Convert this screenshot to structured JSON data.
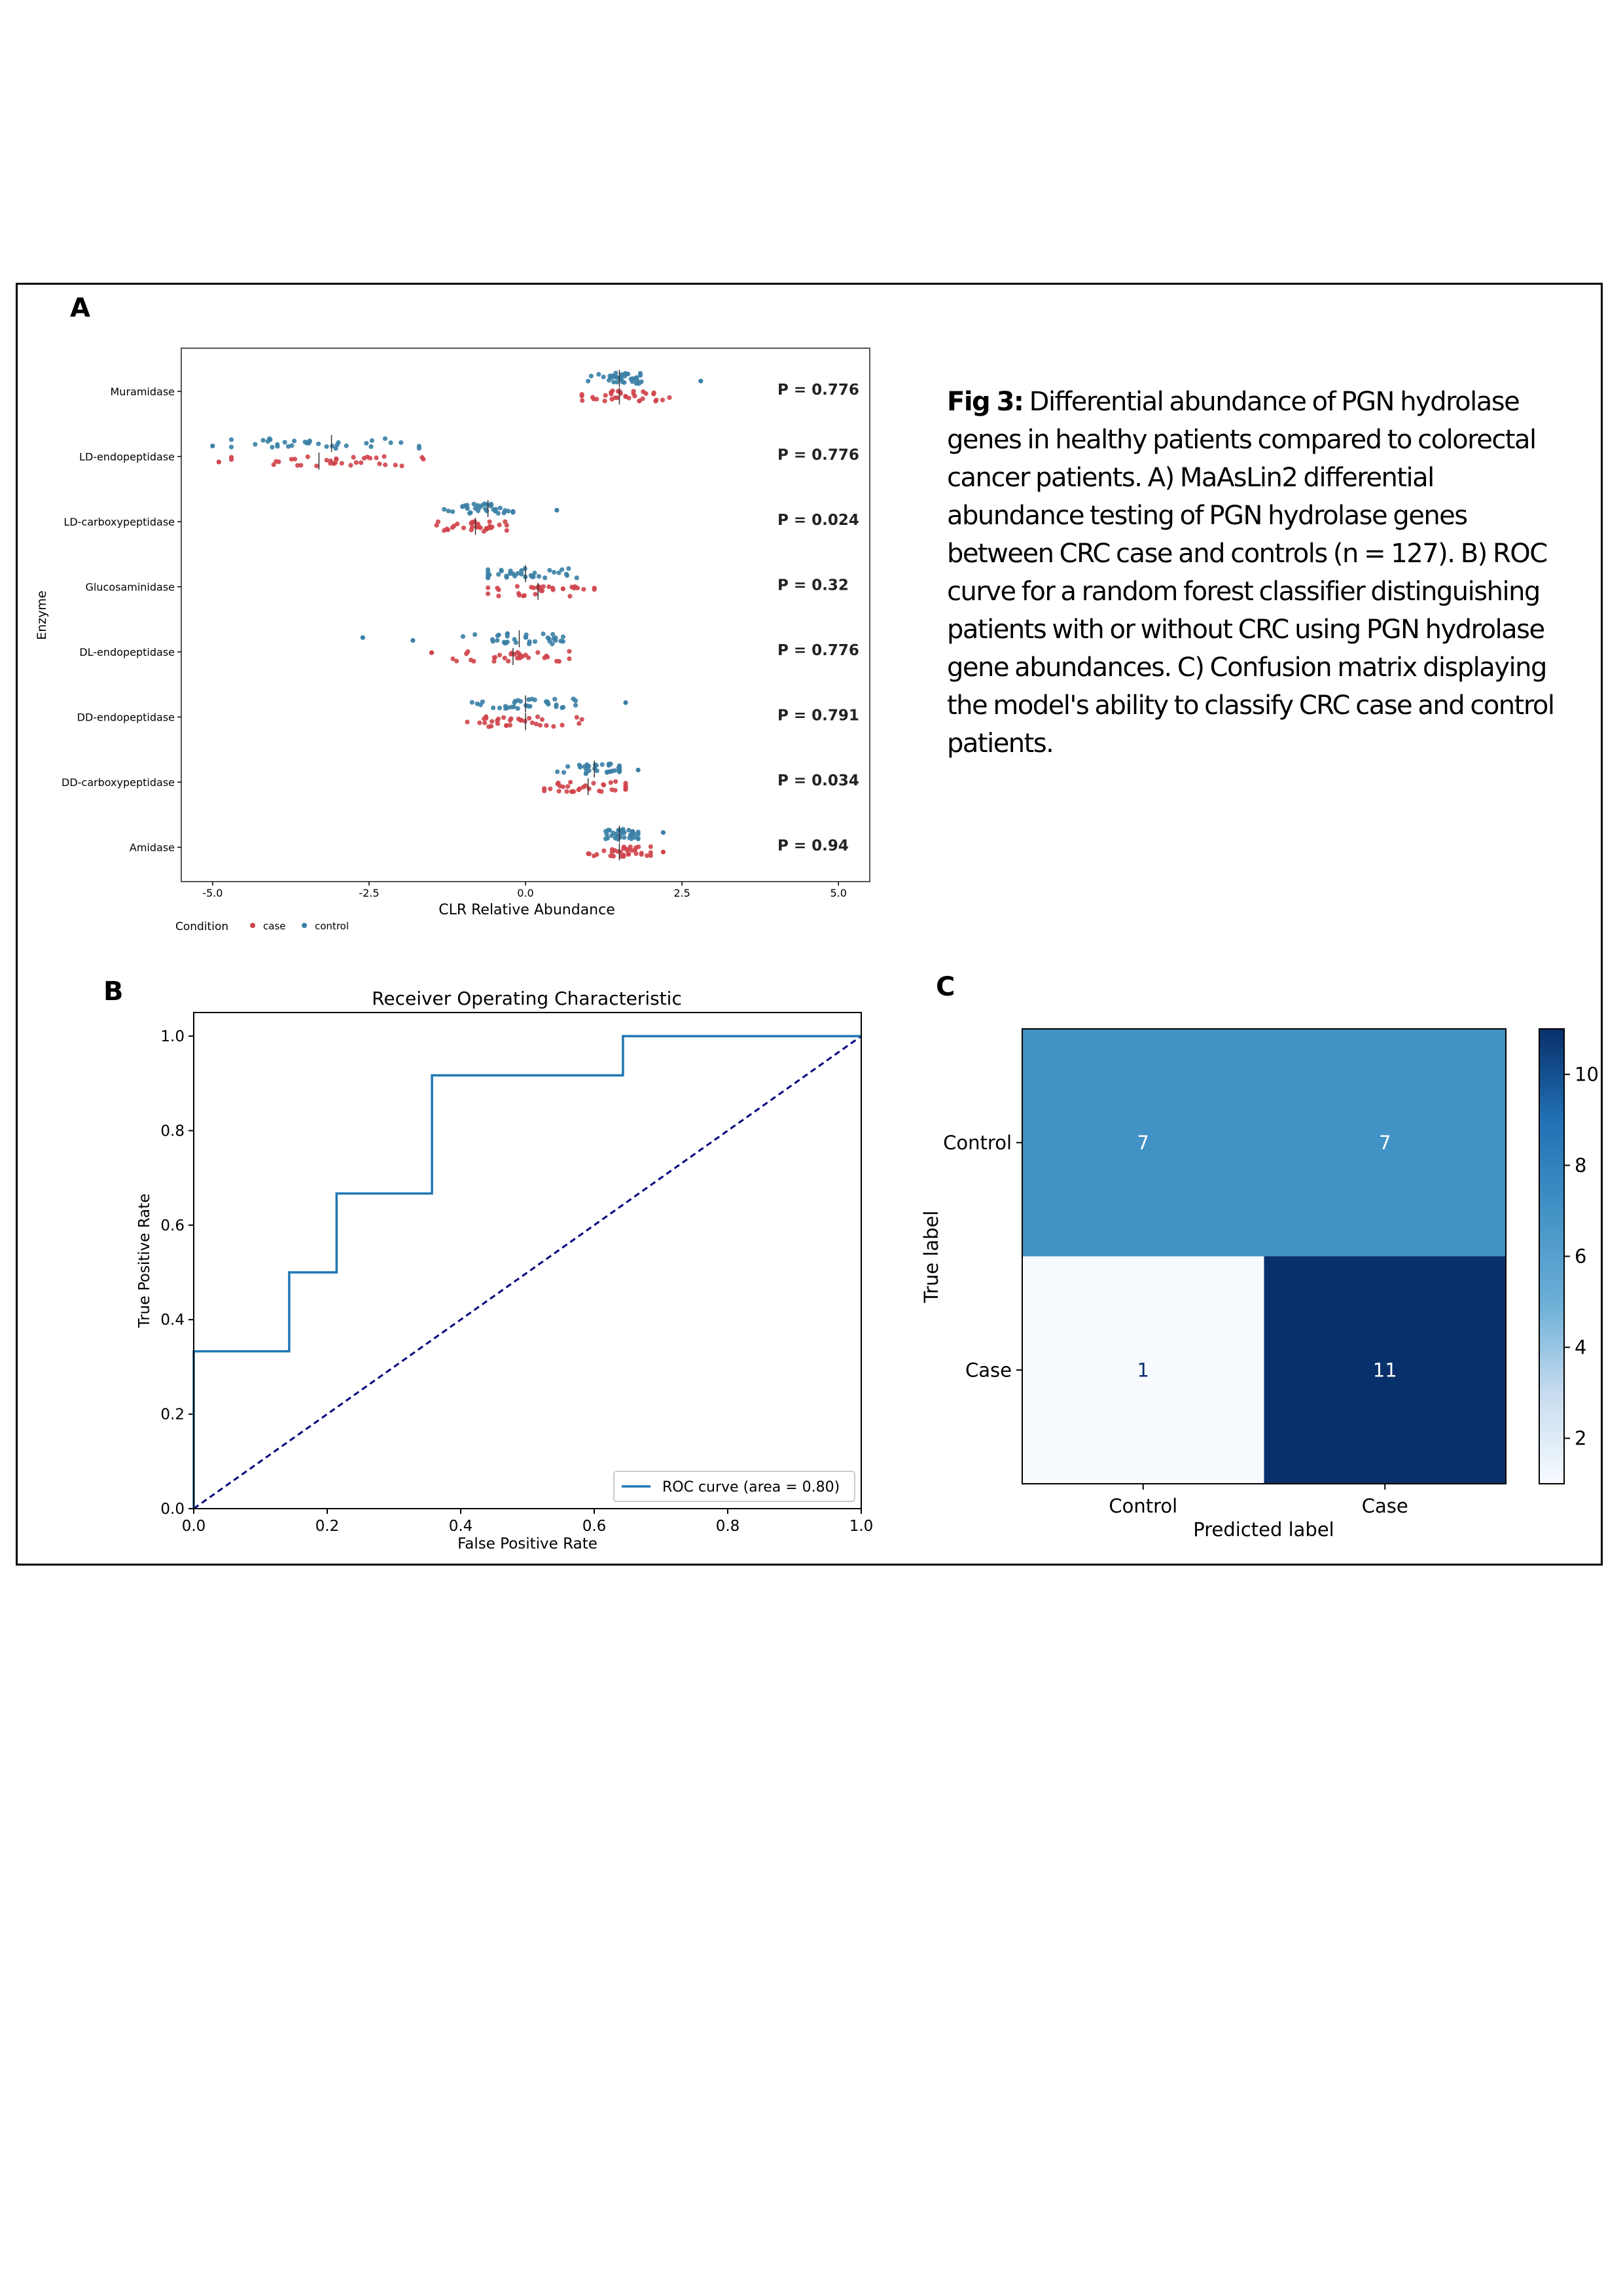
{
  "panel_labels": {
    "a": "A",
    "b": "B",
    "c": "C"
  },
  "caption": {
    "label": "Fig 3:",
    "text": " Differential abundance of PGN hydrolase genes in healthy patients compared to colorectal cancer patients. A) MaAsLin2 differential abundance testing of PGN hydrolase genes between CRC case and controls (n = 127). B) ROC curve for a random forest classifier distinguishing patients with or without CRC using PGN hydrolase gene abundances. C) Confusion matrix displaying the model's ability to classify CRC case and control patients."
  },
  "colors": {
    "case": "#d0444b",
    "control": "#3a7fa6",
    "roc": "#1f77b4",
    "chance": "#000080"
  },
  "chart_data": [
    {
      "type": "scatter",
      "subtype": "strip",
      "xlabel": "CLR Relative Abundance",
      "ylabel": "Enzyme",
      "xlim": [
        -5.5,
        5.5
      ],
      "xticks": [
        "-5.0",
        "-2.5",
        "0.0",
        "2.5",
        "5.0"
      ],
      "xtick_values": [
        -5.0,
        -2.5,
        0.0,
        2.5,
        5.0
      ],
      "legend": {
        "title": "Condition",
        "entries": [
          "case",
          "control"
        ],
        "placement": "bottom-left"
      },
      "categories": [
        {
          "name": "Muramidase",
          "p_label": "P =",
          "p_value": "0.776",
          "control": {
            "center": 1.5,
            "min": 1.0,
            "max": 2.0,
            "outliers": [
              2.8
            ]
          },
          "case": {
            "center": 1.5,
            "min": 0.9,
            "max": 2.3,
            "outliers": []
          }
        },
        {
          "name": "LD-endopeptidase",
          "p_label": "P =",
          "p_value": "0.776",
          "control": {
            "center": -3.1,
            "min": -4.7,
            "max": -1.7,
            "outliers": [
              -5.0
            ]
          },
          "case": {
            "center": -3.3,
            "min": -4.7,
            "max": -1.6,
            "outliers": [
              -4.9
            ]
          },
          "p_note": ""
        },
        {
          "name": "LD-carboxypeptidase",
          "p_label": "P =",
          "p_value": "0.024",
          "control": {
            "center": -0.6,
            "min": -1.3,
            "max": -0.2,
            "outliers": [
              0.5
            ]
          },
          "case": {
            "center": -0.8,
            "min": -1.6,
            "max": -0.3,
            "outliers": []
          }
        },
        {
          "name": "Glucosaminidase",
          "p_label": "P =",
          "p_value": "0.32",
          "control": {
            "center": 0.0,
            "min": -0.6,
            "max": 0.9,
            "outliers": []
          },
          "case": {
            "center": 0.2,
            "min": -0.6,
            "max": 1.1,
            "outliers": []
          }
        },
        {
          "name": "DL-endopeptidase",
          "p_label": "P =",
          "p_value": "0.776",
          "control": {
            "center": -0.1,
            "min": -1.0,
            "max": 0.6,
            "outliers": [
              -2.6,
              -1.8
            ]
          },
          "case": {
            "center": -0.2,
            "min": -1.5,
            "max": 0.7,
            "outliers": []
          }
        },
        {
          "name": "DD-endopeptidase",
          "p_label": "P =",
          "p_value": "0.791",
          "control": {
            "center": 0.0,
            "min": -1.0,
            "max": 0.8,
            "outliers": [
              1.6
            ]
          },
          "case": {
            "center": 0.0,
            "min": -1.2,
            "max": 0.9,
            "outliers": []
          }
        },
        {
          "name": "DD-carboxypeptidase",
          "p_label": "P =",
          "p_value": "0.034",
          "control": {
            "center": 1.1,
            "min": 0.4,
            "max": 1.5,
            "outliers": [
              1.8
            ]
          },
          "case": {
            "center": 1.0,
            "min": 0.3,
            "max": 1.6,
            "outliers": []
          }
        },
        {
          "name": "Amidase",
          "p_label": "P =",
          "p_value": "0.94",
          "control": {
            "center": 1.5,
            "min": 1.1,
            "max": 1.8,
            "outliers": [
              2.2
            ]
          },
          "case": {
            "center": 1.5,
            "min": 1.0,
            "max": 2.0,
            "outliers": [
              2.2
            ]
          }
        }
      ]
    },
    {
      "type": "line",
      "title": "Receiver Operating Characteristic",
      "xlabel": "False Positive Rate",
      "ylabel": "True Positive Rate",
      "xlim": [
        0.0,
        1.0
      ],
      "ylim": [
        0.0,
        1.05
      ],
      "xticks": [
        "0.0",
        "0.2",
        "0.4",
        "0.6",
        "0.8",
        "1.0"
      ],
      "yticks": [
        "0.0",
        "0.2",
        "0.4",
        "0.6",
        "0.8",
        "1.0"
      ],
      "tick_values": [
        0.0,
        0.2,
        0.4,
        0.6,
        0.8,
        1.0
      ],
      "legend": {
        "placement": "bottom-right"
      },
      "series": [
        {
          "name": "ROC curve (area = 0.80)",
          "style": "step",
          "x": [
            0.0,
            0.0,
            0.143,
            0.143,
            0.214,
            0.214,
            0.357,
            0.357,
            0.643,
            0.643,
            1.0
          ],
          "y": [
            0.0,
            0.333,
            0.333,
            0.5,
            0.5,
            0.667,
            0.667,
            0.917,
            0.917,
            1.0,
            1.0
          ]
        },
        {
          "style": "dashed",
          "x": [
            0.0,
            1.0
          ],
          "y": [
            0.0,
            1.0
          ]
        }
      ]
    },
    {
      "type": "heatmap",
      "xlabel": "Predicted label",
      "ylabel": "True label",
      "x_categories": [
        "Control",
        "Case"
      ],
      "y_categories": [
        "Control",
        "Case"
      ],
      "values": [
        [
          7,
          7
        ],
        [
          1,
          11
        ]
      ],
      "colorbar": {
        "min": 1,
        "max": 11,
        "ticks": [
          "2",
          "4",
          "6",
          "8",
          "10"
        ],
        "tick_values": [
          2,
          4,
          6,
          8,
          10
        ]
      },
      "cmap": "Blues"
    }
  ]
}
